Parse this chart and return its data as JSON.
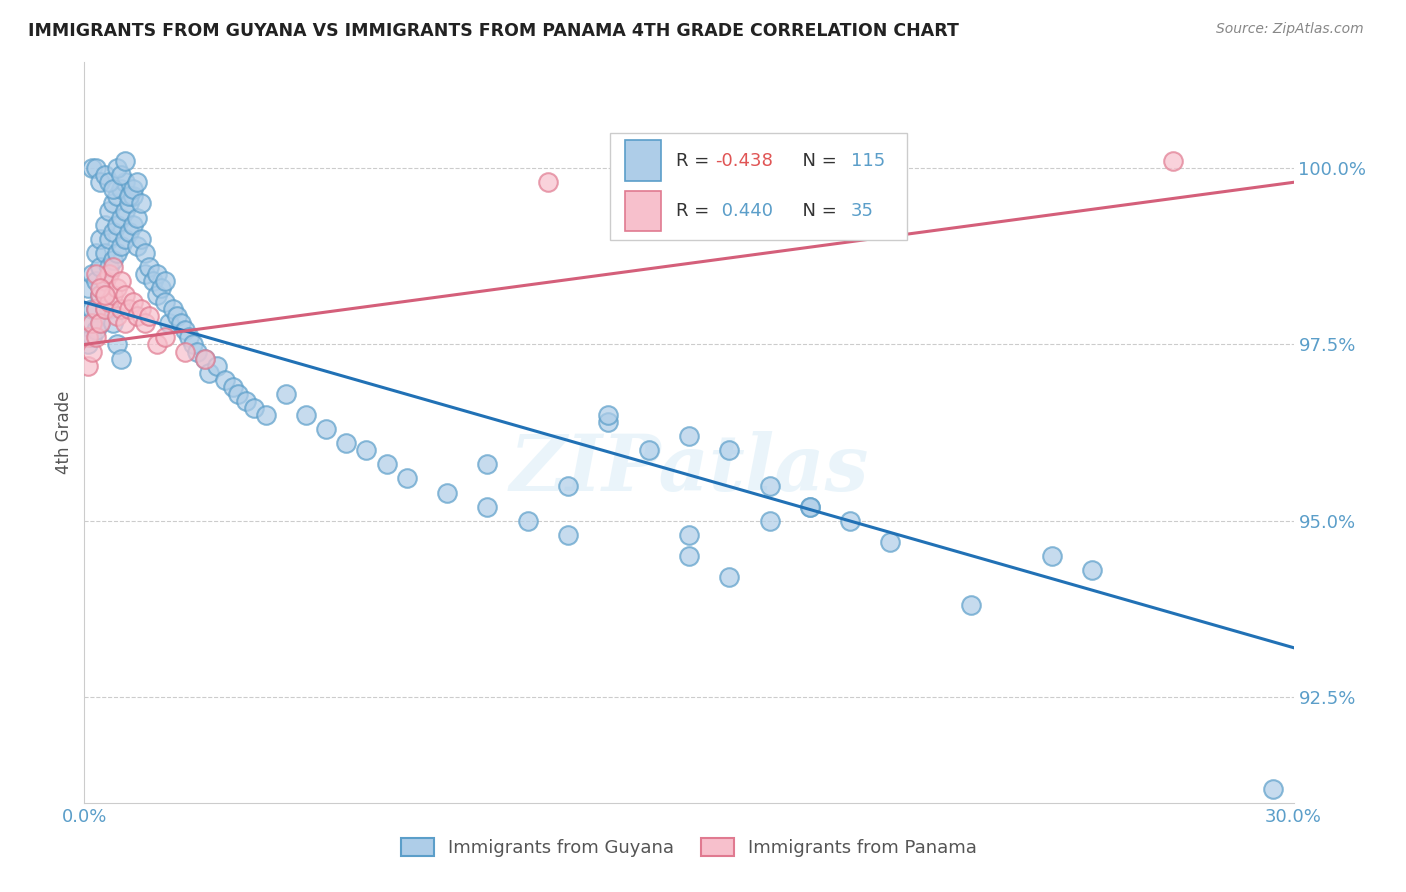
{
  "title": "IMMIGRANTS FROM GUYANA VS IMMIGRANTS FROM PANAMA 4TH GRADE CORRELATION CHART",
  "source": "Source: ZipAtlas.com",
  "ylabel": "4th Grade",
  "watermark": "ZIPatlas",
  "xmin": 0.0,
  "xmax": 0.3,
  "ymin": 91.0,
  "ymax": 101.5,
  "yticks": [
    92.5,
    95.0,
    97.5,
    100.0
  ],
  "xticks": [
    0.0,
    0.05,
    0.1,
    0.15,
    0.2,
    0.25,
    0.3
  ],
  "xtick_labels": [
    "0.0%",
    "",
    "",
    "",
    "",
    "",
    "30.0%"
  ],
  "ytick_labels": [
    "92.5%",
    "95.0%",
    "97.5%",
    "100.0%"
  ],
  "legend_blue_r": "R = -0.438",
  "legend_blue_n": "N = 115",
  "legend_pink_r": "R =  0.440",
  "legend_pink_n": "N = 35",
  "blue_face": "#aecde8",
  "blue_edge": "#5b9ec9",
  "pink_face": "#f7c0cc",
  "pink_edge": "#e07a90",
  "blue_line_color": "#2171b5",
  "pink_line_color": "#d45f7a",
  "grid_color": "#cccccc",
  "blue_scatter_x": [
    0.001,
    0.001,
    0.001,
    0.002,
    0.002,
    0.002,
    0.003,
    0.003,
    0.003,
    0.003,
    0.004,
    0.004,
    0.004,
    0.004,
    0.005,
    0.005,
    0.005,
    0.005,
    0.006,
    0.006,
    0.006,
    0.007,
    0.007,
    0.007,
    0.008,
    0.008,
    0.008,
    0.009,
    0.009,
    0.009,
    0.01,
    0.01,
    0.01,
    0.011,
    0.011,
    0.012,
    0.012,
    0.013,
    0.013,
    0.014,
    0.015,
    0.015,
    0.016,
    0.017,
    0.018,
    0.018,
    0.019,
    0.02,
    0.02,
    0.021,
    0.022,
    0.023,
    0.024,
    0.025,
    0.026,
    0.027,
    0.028,
    0.03,
    0.031,
    0.033,
    0.035,
    0.037,
    0.038,
    0.04,
    0.042,
    0.045,
    0.05,
    0.055,
    0.06,
    0.065,
    0.07,
    0.075,
    0.08,
    0.09,
    0.1,
    0.11,
    0.12,
    0.13,
    0.15,
    0.16,
    0.17,
    0.18,
    0.19,
    0.2,
    0.16,
    0.22,
    0.24,
    0.25,
    0.15,
    0.13,
    0.002,
    0.003,
    0.004,
    0.005,
    0.006,
    0.007,
    0.008,
    0.009,
    0.01,
    0.011,
    0.012,
    0.013,
    0.014,
    0.005,
    0.006,
    0.007,
    0.008,
    0.009,
    0.15,
    0.17,
    0.18,
    0.1,
    0.12,
    0.14,
    0.295
  ],
  "blue_scatter_y": [
    98.3,
    97.8,
    97.5,
    98.5,
    98.0,
    97.6,
    98.8,
    98.4,
    98.0,
    97.7,
    99.0,
    98.6,
    98.2,
    97.8,
    99.2,
    98.8,
    98.4,
    98.0,
    99.4,
    99.0,
    98.6,
    99.5,
    99.1,
    98.7,
    99.6,
    99.2,
    98.8,
    99.7,
    99.3,
    98.9,
    99.8,
    99.4,
    99.0,
    99.5,
    99.1,
    99.6,
    99.2,
    99.3,
    98.9,
    99.0,
    98.8,
    98.5,
    98.6,
    98.4,
    98.5,
    98.2,
    98.3,
    98.1,
    98.4,
    97.8,
    98.0,
    97.9,
    97.8,
    97.7,
    97.6,
    97.5,
    97.4,
    97.3,
    97.1,
    97.2,
    97.0,
    96.9,
    96.8,
    96.7,
    96.6,
    96.5,
    96.8,
    96.5,
    96.3,
    96.1,
    96.0,
    95.8,
    95.6,
    95.4,
    95.2,
    95.0,
    94.8,
    96.4,
    94.8,
    96.0,
    95.5,
    95.2,
    95.0,
    94.7,
    94.2,
    93.8,
    94.5,
    94.3,
    96.2,
    96.5,
    100.0,
    100.0,
    99.8,
    99.9,
    99.8,
    99.7,
    100.0,
    99.9,
    100.1,
    99.6,
    99.7,
    99.8,
    99.5,
    98.2,
    98.0,
    97.8,
    97.5,
    97.3,
    94.5,
    95.0,
    95.2,
    95.8,
    95.5,
    96.0,
    91.2
  ],
  "pink_scatter_x": [
    0.001,
    0.001,
    0.002,
    0.002,
    0.003,
    0.003,
    0.004,
    0.004,
    0.005,
    0.005,
    0.006,
    0.006,
    0.007,
    0.007,
    0.008,
    0.008,
    0.009,
    0.009,
    0.01,
    0.01,
    0.011,
    0.012,
    0.013,
    0.014,
    0.015,
    0.016,
    0.018,
    0.02,
    0.025,
    0.03,
    0.003,
    0.004,
    0.005,
    0.27,
    0.115
  ],
  "pink_scatter_y": [
    97.6,
    97.2,
    97.8,
    97.4,
    98.0,
    97.6,
    98.2,
    97.8,
    98.4,
    98.0,
    98.5,
    98.1,
    98.6,
    98.2,
    98.3,
    97.9,
    98.4,
    98.0,
    98.2,
    97.8,
    98.0,
    98.1,
    97.9,
    98.0,
    97.8,
    97.9,
    97.5,
    97.6,
    97.4,
    97.3,
    98.5,
    98.3,
    98.2,
    100.1,
    99.8
  ],
  "blue_trend_x": [
    0.0,
    0.3
  ],
  "blue_trend_y": [
    98.1,
    93.2
  ],
  "pink_trend_x": [
    0.0,
    0.3
  ],
  "pink_trend_y": [
    97.5,
    99.8
  ]
}
